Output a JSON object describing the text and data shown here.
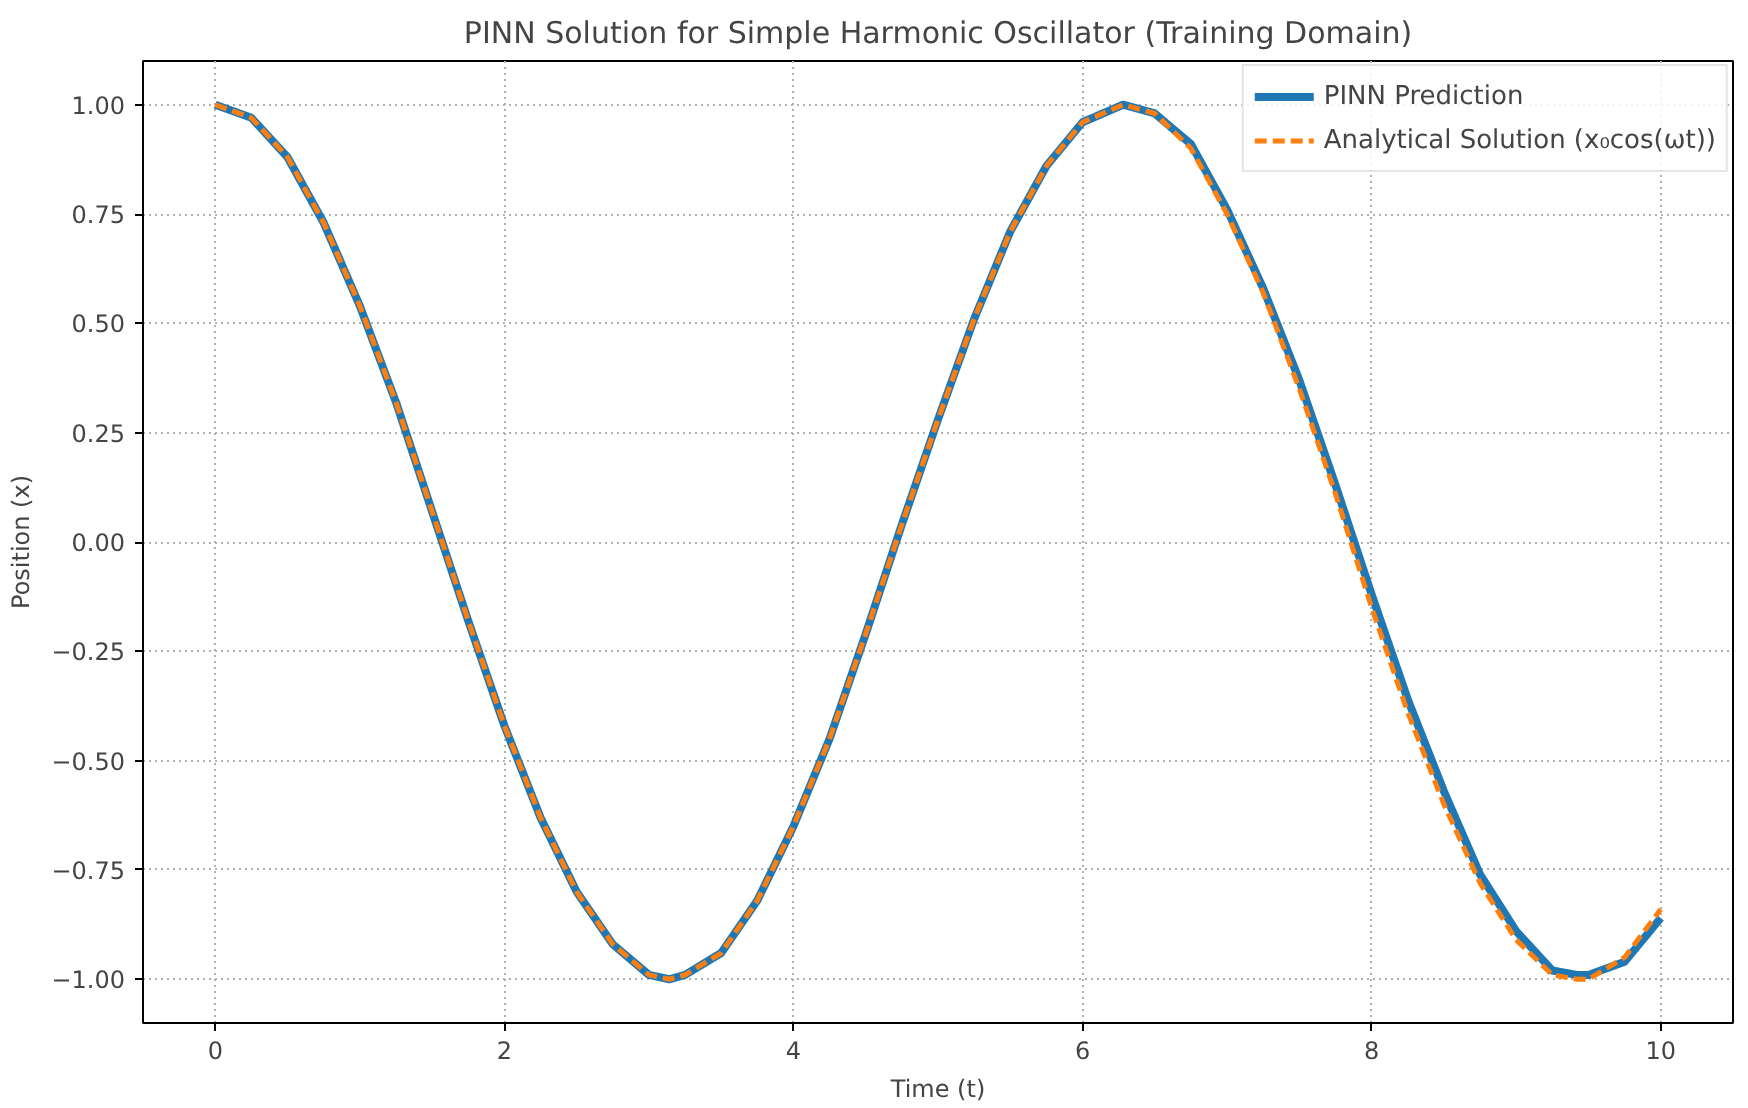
{
  "chart_data": {
    "type": "line",
    "title": "PINN Solution for Simple Harmonic Oscillator (Training Domain)",
    "xlabel": "Time (t)",
    "ylabel": "Position (x)",
    "x": [
      0,
      0.25,
      0.5,
      0.75,
      1,
      1.25,
      1.5,
      1.75,
      2,
      2.25,
      2.5,
      2.75,
      3,
      3.14,
      3.25,
      3.5,
      3.75,
      4,
      4.25,
      4.5,
      4.75,
      5,
      5.25,
      5.5,
      5.75,
      6,
      6.28,
      6.5,
      6.75,
      7,
      7.25,
      7.5,
      7.75,
      8,
      8.25,
      8.5,
      8.75,
      9,
      9.25,
      9.42,
      9.5,
      9.75,
      10
    ],
    "series": [
      {
        "name": "PINN Prediction",
        "color": "#1f77b4",
        "line_style": "solid",
        "values": [
          1.0,
          0.97,
          0.88,
          0.73,
          0.54,
          0.32,
          0.07,
          -0.18,
          -0.42,
          -0.63,
          -0.8,
          -0.92,
          -0.99,
          -1.0,
          -0.99,
          -0.94,
          -0.82,
          -0.65,
          -0.45,
          -0.21,
          0.04,
          0.28,
          0.51,
          0.71,
          0.86,
          0.96,
          1.0,
          0.98,
          0.91,
          0.76,
          0.58,
          0.37,
          0.13,
          -0.12,
          -0.36,
          -0.57,
          -0.76,
          -0.89,
          -0.98,
          -0.99,
          -0.99,
          -0.96,
          -0.86
        ]
      },
      {
        "name": "Analytical Solution (x₀cos(ωt))",
        "color": "#ff7f0e",
        "line_style": "dashed",
        "values": [
          1.0,
          0.97,
          0.88,
          0.73,
          0.54,
          0.32,
          0.07,
          -0.18,
          -0.42,
          -0.63,
          -0.8,
          -0.92,
          -0.99,
          -1.0,
          -0.99,
          -0.94,
          -0.82,
          -0.65,
          -0.45,
          -0.21,
          0.04,
          0.28,
          0.51,
          0.71,
          0.86,
          0.96,
          1.0,
          0.98,
          0.9,
          0.75,
          0.57,
          0.35,
          0.11,
          -0.15,
          -0.39,
          -0.6,
          -0.78,
          -0.91,
          -0.99,
          -1.0,
          -1.0,
          -0.95,
          -0.84
        ]
      }
    ],
    "xlim": [
      -0.5,
      10.5
    ],
    "ylim": [
      -1.1,
      1.1
    ],
    "xticks": [
      0,
      2,
      4,
      6,
      8,
      10
    ],
    "yticks": [
      {
        "value": -1,
        "label": "−1.00"
      },
      {
        "value": -0.75,
        "label": "−0.75"
      },
      {
        "value": -0.5,
        "label": "−0.50"
      },
      {
        "value": -0.25,
        "label": "−0.25"
      },
      {
        "value": 0,
        "label": "0.00"
      },
      {
        "value": 0.25,
        "label": "0.25"
      },
      {
        "value": 0.5,
        "label": "0.50"
      },
      {
        "value": 0.75,
        "label": "0.75"
      },
      {
        "value": 1,
        "label": "1.00"
      }
    ],
    "grid": true,
    "legend": "top right"
  }
}
